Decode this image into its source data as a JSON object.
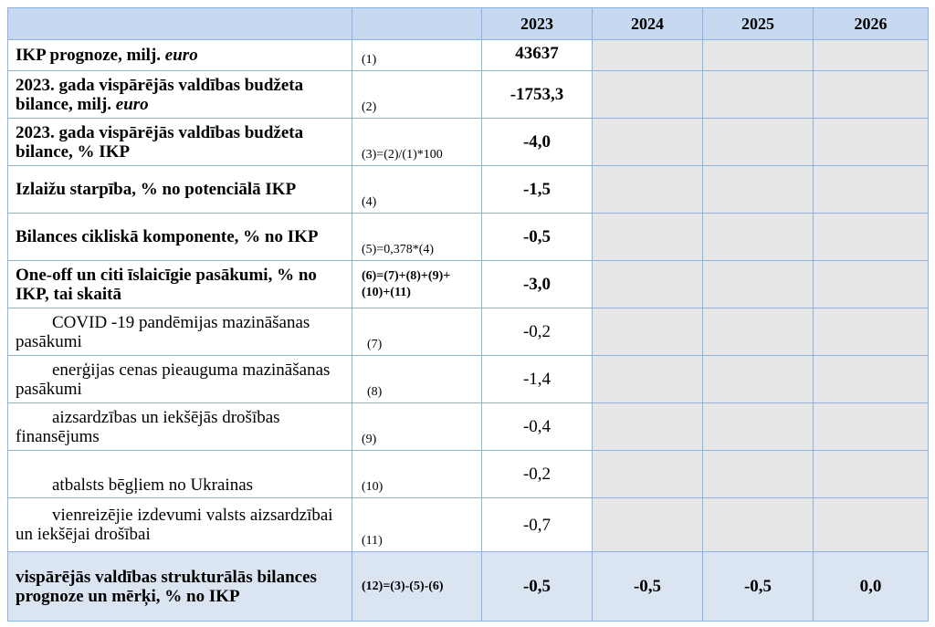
{
  "header": [
    "",
    "",
    "2023",
    "2024",
    "2025",
    "2026"
  ],
  "rows": [
    {
      "label_pre": "IKP prognoze, milj. ",
      "label_it": "euro",
      "formula": "(1)",
      "v2023": "43637"
    },
    {
      "label_pre": "2023. gada vispārējās valdības budžeta bilance, milj. ",
      "label_it": "euro",
      "formula": "(2)",
      "v2023": "-1753,3"
    },
    {
      "label_pre": "2023. gada vispārējās valdības budžeta bilance, % IKP",
      "label_it": "",
      "formula": "(3)=(2)/(1)*100",
      "v2023": "-4,0"
    },
    {
      "label_pre": "Izlaižu starpība, % no potenciālā IKP",
      "label_it": "",
      "formula": "(4)",
      "v2023": "-1,5"
    },
    {
      "label_pre": "Bilances cikliskā komponente, % no IKP",
      "label_it": "",
      "formula": "(5)=0,378*(4)",
      "v2023": "-0,5"
    },
    {
      "label_pre": "One-off un citi īslaicīgie pasākumi, % no IKP, tai skaitā",
      "label_it": "",
      "formula": "(6)=(7)+(8)+(9)+(10)+(11)",
      "v2023": "-3,0"
    },
    {
      "label_pre": "COVID -19 pandēmijas mazināšanas pasākumi",
      "label_it": "",
      "formula": "(7)",
      "v2023": "-0,2"
    },
    {
      "label_pre": "enerģijas cenas pieauguma mazināšanas pasākumi",
      "label_it": "",
      "formula": "(8)",
      "v2023": "-1,4"
    },
    {
      "label_pre": "aizsardzības un iekšējās drošības finansējums",
      "label_it": "",
      "formula": "(9)",
      "v2023": "-0,4"
    },
    {
      "label_pre": "atbalsts bēgļiem no Ukrainas",
      "label_it": "",
      "formula": "(10)",
      "v2023": "-0,2"
    },
    {
      "label_pre": "vienreizējie izdevumi valsts aizsardzībai un iekšējai drošībai",
      "label_it": "",
      "formula": "(11)",
      "v2023": "-0,7"
    }
  ],
  "last_row": {
    "label": "vispārējās valdības strukturālās bilances prognoze un mērķi, % no IKP",
    "formula": "(12)=(3)-(5)-(6)",
    "v2023": "-0,5",
    "v2024": "-0,5",
    "v2025": "-0,5",
    "v2026": "0,0"
  }
}
